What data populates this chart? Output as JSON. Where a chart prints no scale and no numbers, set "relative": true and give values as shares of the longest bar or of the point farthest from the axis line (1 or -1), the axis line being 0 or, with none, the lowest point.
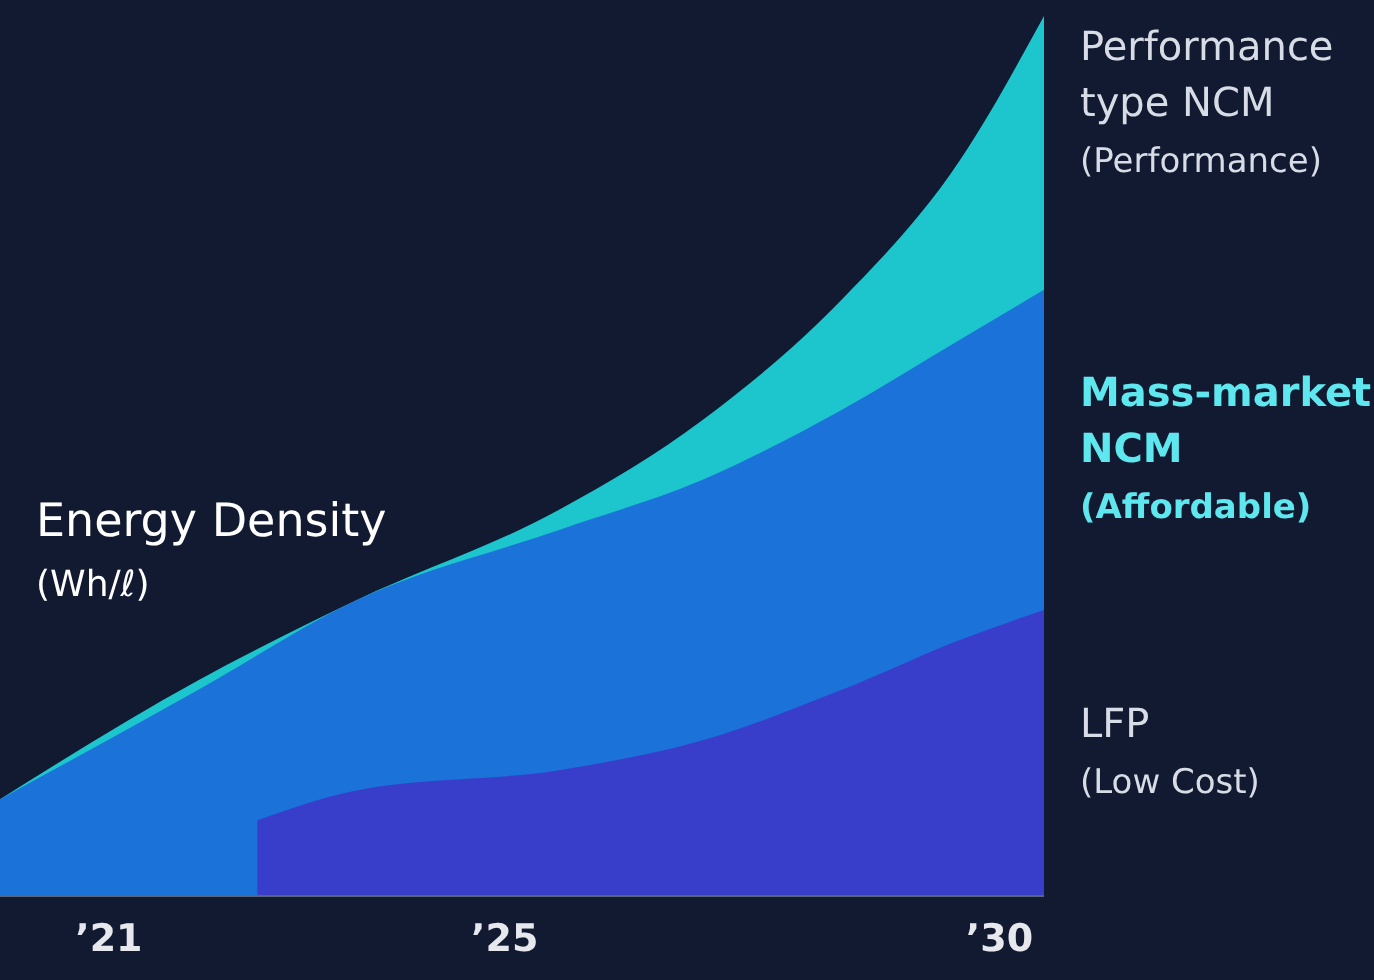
{
  "chart_data": {
    "type": "area",
    "relative": true,
    "ylabel": "Energy Density (Wh/ℓ)",
    "xlim": [
      2019.9,
      2030.45
    ],
    "xticks": [
      {
        "value": 2021,
        "label": "’21"
      },
      {
        "value": 2025,
        "label": "’25"
      },
      {
        "value": 2030,
        "label": "’30"
      }
    ],
    "tick_labels": "x",
    "series": [
      {
        "name": "Performance type NCM (Performance)",
        "color": "#1fcfd6",
        "x": [
          2019.9,
          2021.9,
          2023.5,
          2025.55,
          2027.0,
          2028.4,
          2029.6,
          2030.45
        ],
        "values": [
          0.11,
          0.245,
          0.336,
          0.439,
          0.541,
          0.677,
          0.836,
          1
        ]
      },
      {
        "name": "Mass-market NCM (Affordable)",
        "color": "#1b6fd9",
        "x": [
          2019.9,
          2021.9,
          2023.5,
          2025.55,
          2027.0,
          2028.4,
          2029.6,
          2030.45
        ],
        "values": [
          0.11,
          0.234,
          0.336,
          0.416,
          0.473,
          0.552,
          0.632,
          0.689
        ]
      },
      {
        "name": "LFP (Low Cost)",
        "color": "#3b3bc9",
        "x": [
          2022.5,
          2023.5,
          2025.55,
          2027.0,
          2028.4,
          2029.6,
          2030.45
        ],
        "values": [
          0.086,
          0.12,
          0.143,
          0.177,
          0.234,
          0.291,
          0.325
        ]
      }
    ]
  }
}
